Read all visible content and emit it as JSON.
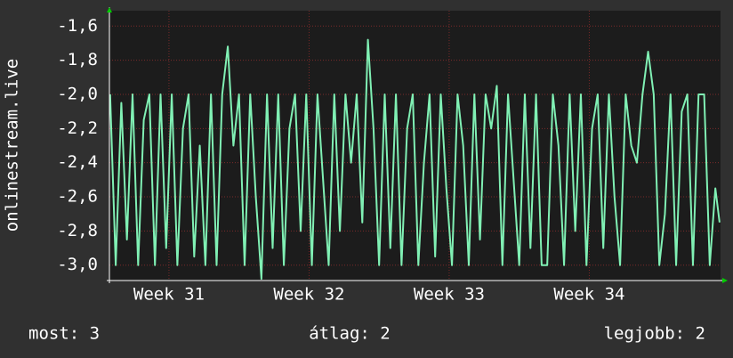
{
  "chart_data": {
    "type": "line",
    "y_label": "onlinestream.live",
    "xlim": [
      30.575,
      34.937
    ],
    "xticks": [
      {
        "value": 31,
        "label": "Week 31"
      },
      {
        "value": 32,
        "label": "Week 32"
      },
      {
        "value": 33,
        "label": "Week 33"
      },
      {
        "value": 34,
        "label": "Week 34"
      }
    ],
    "ylim": [
      -3.09,
      -1.51
    ],
    "yticks": [
      {
        "value": -1.6,
        "label": "-1,6"
      },
      {
        "value": -1.8,
        "label": "-1,8"
      },
      {
        "value": -2.0,
        "label": "-2,0"
      },
      {
        "value": -2.2,
        "label": "-2,2"
      },
      {
        "value": -2.4,
        "label": "-2,4"
      },
      {
        "value": -2.6,
        "label": "-2,6"
      },
      {
        "value": -2.8,
        "label": "-2,8"
      },
      {
        "value": -3.0,
        "label": "-3,0"
      }
    ],
    "grid": true,
    "series": [
      {
        "color": "#80f0b4",
        "x": [
          30.58,
          30.62,
          30.66,
          30.7,
          30.74,
          30.78,
          30.82,
          30.86,
          30.9,
          30.94,
          30.98,
          31.02,
          31.06,
          31.1,
          31.14,
          31.18,
          31.22,
          31.26,
          31.3,
          31.34,
          31.38,
          31.42,
          31.46,
          31.5,
          31.54,
          31.58,
          31.62,
          31.66,
          31.7,
          31.74,
          31.78,
          31.82,
          31.86,
          31.9,
          31.94,
          31.98,
          32.02,
          32.06,
          32.1,
          32.14,
          32.18,
          32.22,
          32.26,
          32.3,
          32.34,
          32.38,
          32.42,
          32.46,
          32.5,
          32.54,
          32.58,
          32.62,
          32.66,
          32.7,
          32.74,
          32.78,
          32.82,
          32.86,
          32.9,
          32.94,
          32.98,
          33.02,
          33.06,
          33.1,
          33.14,
          33.18,
          33.22,
          33.26,
          33.3,
          33.34,
          33.38,
          33.42,
          33.46,
          33.5,
          33.54,
          33.58,
          33.62,
          33.66,
          33.7,
          33.74,
          33.78,
          33.82,
          33.86,
          33.9,
          33.94,
          33.98,
          34.02,
          34.06,
          34.1,
          34.14,
          34.18,
          34.22,
          34.26,
          34.3,
          34.34,
          34.38,
          34.42,
          34.46,
          34.5,
          34.54,
          34.58,
          34.62,
          34.66,
          34.7,
          34.74,
          34.78,
          34.82,
          34.86,
          34.9,
          34.93
        ],
        "values": [
          -2.0,
          -3.0,
          -2.05,
          -2.85,
          -2.0,
          -3.0,
          -2.15,
          -2.0,
          -3.0,
          -2.0,
          -2.9,
          -2.0,
          -3.0,
          -2.2,
          -2.0,
          -2.95,
          -2.3,
          -3.0,
          -2.0,
          -3.0,
          -2.0,
          -1.72,
          -2.3,
          -2.0,
          -3.0,
          -2.0,
          -2.6,
          -3.08,
          -2.0,
          -2.9,
          -2.0,
          -3.0,
          -2.2,
          -2.0,
          -2.8,
          -2.0,
          -3.0,
          -2.0,
          -2.5,
          -3.0,
          -2.0,
          -2.8,
          -2.0,
          -2.4,
          -2.0,
          -2.75,
          -1.68,
          -2.2,
          -3.0,
          -2.0,
          -2.9,
          -2.0,
          -3.0,
          -2.2,
          -2.0,
          -3.0,
          -2.4,
          -2.0,
          -2.95,
          -2.0,
          -2.55,
          -3.0,
          -2.0,
          -2.3,
          -3.0,
          -2.0,
          -2.85,
          -2.0,
          -2.2,
          -1.95,
          -3.0,
          -2.0,
          -2.5,
          -3.0,
          -2.0,
          -2.9,
          -2.0,
          -3.0,
          -3.0,
          -2.0,
          -2.3,
          -3.0,
          -2.0,
          -2.8,
          -2.0,
          -3.0,
          -2.2,
          -2.0,
          -2.9,
          -2.0,
          -2.6,
          -3.0,
          -2.0,
          -2.3,
          -2.4,
          -2.0,
          -1.75,
          -2.0,
          -3.0,
          -2.7,
          -2.0,
          -3.0,
          -2.1,
          -2.0,
          -3.0,
          -2.0,
          -2.0,
          -3.0,
          -2.55,
          -2.75
        ]
      }
    ],
    "footer": [
      "most: 3",
      "átlag: 2",
      "legjobb: 2"
    ]
  }
}
